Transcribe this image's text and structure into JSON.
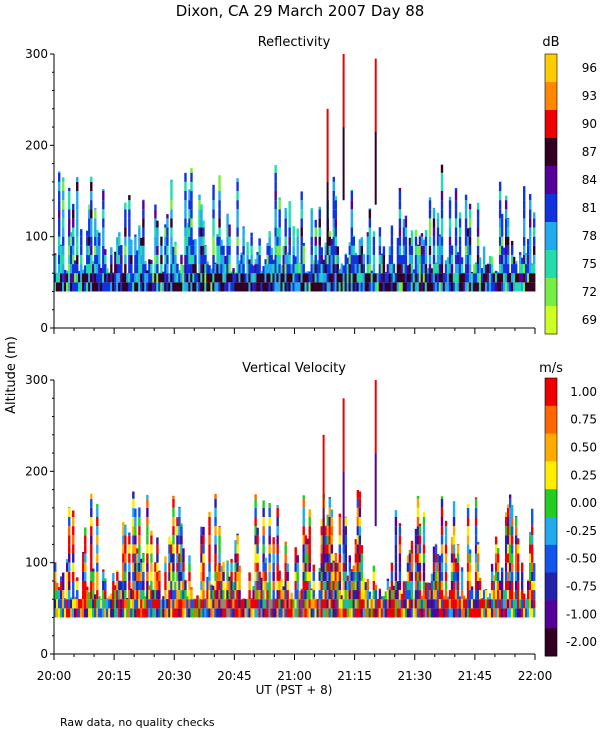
{
  "title": "Dixon, CA 29 March 2007  Day  88",
  "ylabel": "Altitude (m)",
  "xlabel": "UT  (PST + 8)",
  "footnote": "Raw data, no quality checks",
  "x_ticks": [
    "20:00",
    "20:15",
    "20:30",
    "20:45",
    "21:00",
    "21:15",
    "21:30",
    "21:45",
    "22:00"
  ],
  "chart_data": [
    {
      "type": "heatmap",
      "title": "Reflectivity",
      "xlim": [
        "20:00",
        "22:00"
      ],
      "ylim": [
        0,
        300
      ],
      "y_ticks": [
        0,
        100,
        200,
        300
      ],
      "colorbar": {
        "unit": "dB",
        "labels": [
          "96",
          "93",
          "90",
          "87",
          "84",
          "81",
          "78",
          "75",
          "72",
          "69"
        ],
        "colors": [
          "#ffcc00",
          "#ff8800",
          "#ee0000",
          "#330022",
          "#550099",
          "#1133dd",
          "#22aaee",
          "#22ddaa",
          "#77ee44",
          "#ccff22"
        ]
      },
      "echo_base_m": 40,
      "typical_echo_top_m": [
        60,
        180
      ],
      "notable_features": [
        {
          "time": "21:12",
          "top_m": 300
        },
        {
          "time": "21:20",
          "top_m": 295
        },
        {
          "time": "21:08",
          "top_m": 240
        }
      ]
    },
    {
      "type": "heatmap",
      "title": "Vertical Velocity",
      "xlim": [
        "20:00",
        "22:00"
      ],
      "ylim": [
        0,
        300
      ],
      "y_ticks": [
        0,
        100,
        200,
        300
      ],
      "colorbar": {
        "unit": "m/s",
        "labels": [
          "1.00",
          "0.75",
          "0.50",
          "0.25",
          "0.00",
          "-0.25",
          "-0.50",
          "-0.75",
          "-1.00",
          "-2.00"
        ],
        "colors": [
          "#ee0000",
          "#ff6600",
          "#ffaa00",
          "#ffee00",
          "#22cc22",
          "#22aaee",
          "#1155ee",
          "#2222aa",
          "#550099",
          "#330022"
        ]
      },
      "echo_base_m": 40,
      "typical_echo_top_m": [
        60,
        180
      ],
      "notable_features": [
        {
          "time": "21:12",
          "top_m": 280
        },
        {
          "time": "21:20",
          "top_m": 300
        },
        {
          "time": "21:07",
          "top_m": 240
        }
      ]
    }
  ]
}
